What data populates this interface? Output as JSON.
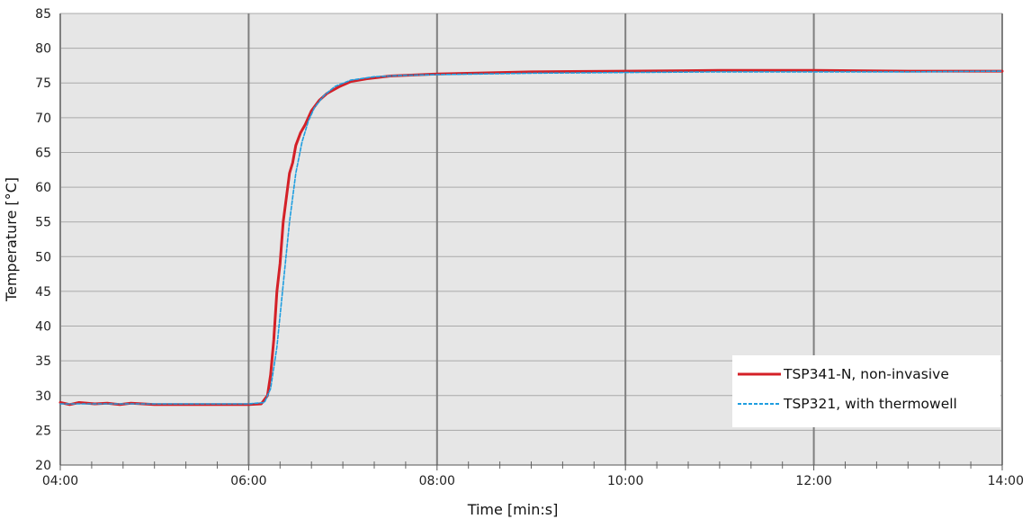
{
  "chart_data": {
    "type": "line",
    "xlabel": "Time [min:s]",
    "ylabel": "Temperature [°C]",
    "xlim": [
      240,
      840
    ],
    "ylim": [
      20,
      85
    ],
    "x_ticks": [
      240,
      360,
      480,
      600,
      720,
      840
    ],
    "x_tick_labels": [
      "04:00",
      "06:00",
      "08:00",
      "10:00",
      "12:00",
      "14:00"
    ],
    "y_ticks": [
      20,
      25,
      30,
      35,
      40,
      45,
      50,
      55,
      60,
      65,
      70,
      75,
      80,
      85
    ],
    "y_tick_labels": [
      "20",
      "25",
      "30",
      "35",
      "40",
      "45",
      "50",
      "55",
      "60",
      "65",
      "70",
      "75",
      "80",
      "85"
    ],
    "grid": {
      "horizontal": true,
      "vertical_major": true
    },
    "legend_position": "bottom-right",
    "background_color": "#e6e6e6",
    "series": [
      {
        "name": "TSP341-N, non-invasive",
        "color": "#d42027",
        "style": "solid",
        "x": [
          240,
          244,
          246,
          252,
          262,
          270,
          278,
          285,
          300,
          320,
          340,
          360,
          368,
          372,
          374,
          376,
          378,
          380,
          382,
          384,
          386,
          388,
          390,
          393,
          396,
          400,
          405,
          410,
          418,
          425,
          435,
          450,
          480,
          540,
          600,
          660,
          720,
          780,
          840
        ],
        "y": [
          29.0,
          28.8,
          28.7,
          29.0,
          28.8,
          28.9,
          28.7,
          28.9,
          28.7,
          28.7,
          28.7,
          28.7,
          28.8,
          30.0,
          33.0,
          38.0,
          45.0,
          49.0,
          55.0,
          58.5,
          62.0,
          63.5,
          66.0,
          67.8,
          69.0,
          71.0,
          72.5,
          73.5,
          74.5,
          75.2,
          75.6,
          76.0,
          76.3,
          76.6,
          76.7,
          76.8,
          76.8,
          76.7,
          76.7
        ]
      },
      {
        "name": "TSP321, with thermowell",
        "color": "#1f9ee0",
        "style": "dashed",
        "x": [
          240,
          260,
          300,
          340,
          360,
          370,
          374,
          378,
          382,
          386,
          390,
          394,
          398,
          402,
          408,
          415,
          425,
          440,
          460,
          480,
          540,
          600,
          660,
          720,
          780,
          840
        ],
        "y": [
          28.8,
          28.8,
          28.8,
          28.8,
          28.8,
          29.0,
          31.0,
          37.0,
          46.0,
          55.0,
          62.0,
          66.5,
          69.5,
          71.5,
          73.2,
          74.5,
          75.4,
          75.9,
          76.1,
          76.2,
          76.4,
          76.5,
          76.6,
          76.6,
          76.6,
          76.7
        ]
      }
    ]
  }
}
